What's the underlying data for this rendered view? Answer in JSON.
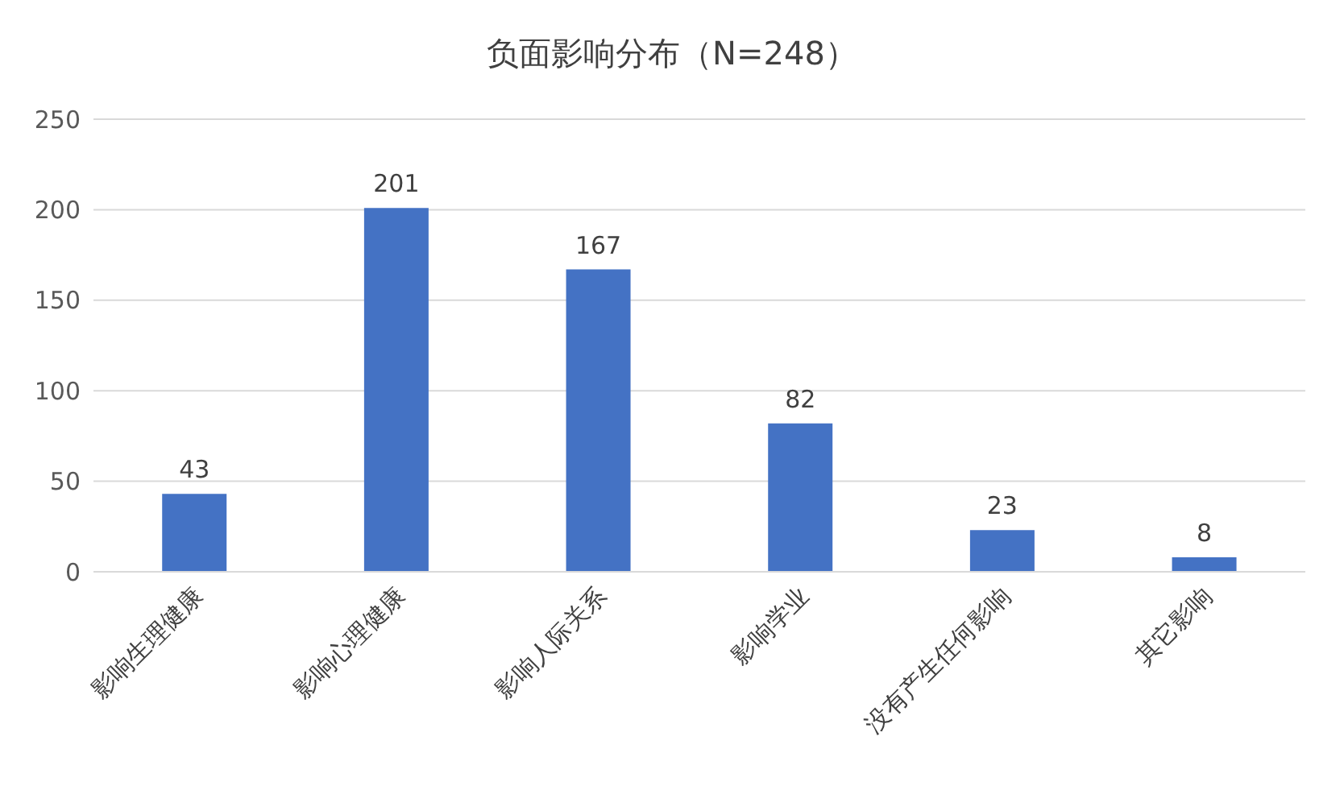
{
  "chart_data": {
    "type": "bar",
    "title": "负面影响分布（N=248）",
    "categories": [
      "影响生理健康",
      "影响心理健康",
      "影响人际关系",
      "影响学业",
      "没有产生任何影响",
      "其它影响"
    ],
    "values": [
      43,
      201,
      167,
      82,
      23,
      8
    ],
    "color": "#4472c4",
    "ylim": [
      0,
      250
    ],
    "yticks": [
      0,
      50,
      100,
      150,
      200,
      250
    ],
    "grid": "y",
    "data_labels": true
  }
}
